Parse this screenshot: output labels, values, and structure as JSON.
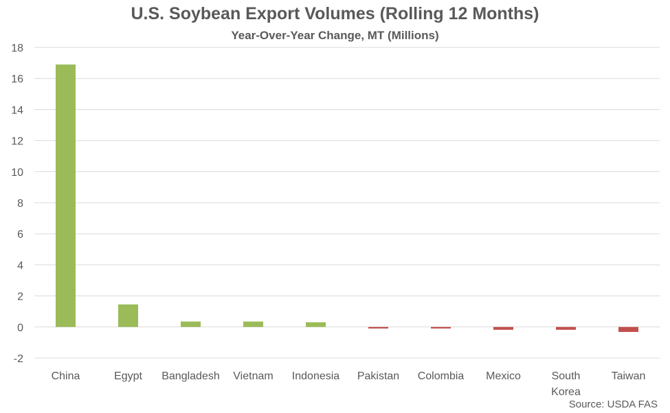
{
  "chart_data": {
    "type": "bar",
    "title": "U.S. Soybean Export Volumes (Rolling 12 Months)",
    "subtitle": "Year-Over-Year Change, MT (Millions)",
    "source": "Source: USDA FAS",
    "categories": [
      [
        "China"
      ],
      [
        "Egypt"
      ],
      [
        "Bangladesh"
      ],
      [
        "Vietnam"
      ],
      [
        "Indonesia"
      ],
      [
        "Pakistan"
      ],
      [
        "Colombia"
      ],
      [
        "Mexico"
      ],
      [
        "South",
        "Korea"
      ],
      [
        "Taiwan"
      ]
    ],
    "values": [
      16.9,
      1.45,
      0.35,
      0.35,
      0.3,
      -0.1,
      -0.1,
      -0.18,
      -0.18,
      -0.32
    ],
    "ylim": [
      -2,
      18
    ],
    "yticks": [
      -2,
      0,
      2,
      4,
      6,
      8,
      10,
      12,
      14,
      16,
      18
    ],
    "grid": true,
    "legend": "none",
    "colors": {
      "positive": "#9BBB59",
      "negative": "#C0504D",
      "grid": "#D9D9D9",
      "text": "#595959"
    }
  }
}
